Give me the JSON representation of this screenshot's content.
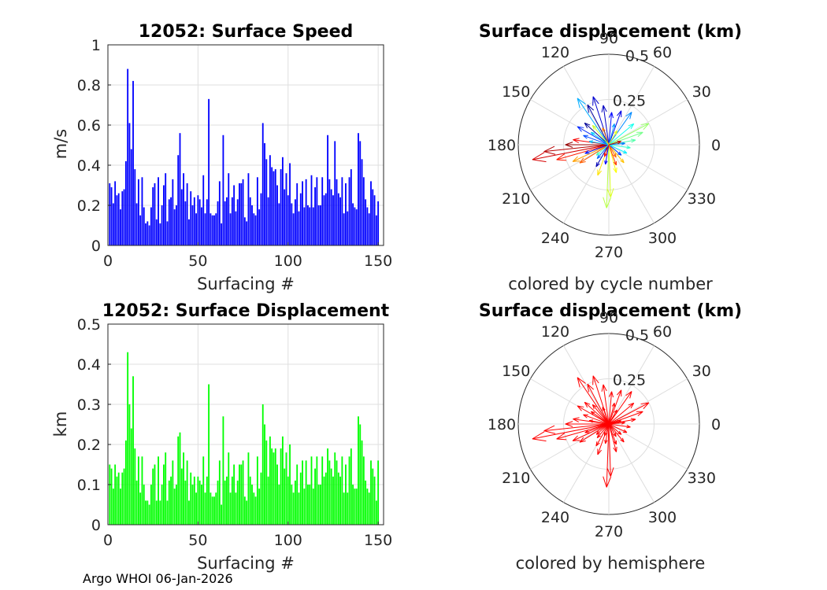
{
  "footer": "Argo WHOI 06-Jan-2026",
  "chart_data": [
    {
      "id": "speed",
      "type": "bar",
      "title": "12052: Surface Speed",
      "xlabel": "Surfacing #",
      "ylabel": "m/s",
      "xlim": [
        0,
        153
      ],
      "ylim": [
        0,
        1
      ],
      "xticks": [
        0,
        50,
        100,
        150
      ],
      "yticks": [
        0,
        0.2,
        0.4,
        0.6,
        0.8,
        1
      ],
      "ytick_labels": [
        "0",
        "0.2",
        "0.4",
        "0.6",
        "0.8",
        "1"
      ],
      "color": "#0000ff",
      "values": [
        0.31,
        0.29,
        0.21,
        0.32,
        0.25,
        0.26,
        0.18,
        0.27,
        0.28,
        0.42,
        0.88,
        0.61,
        0.48,
        0.82,
        0.38,
        0.21,
        0.33,
        0.15,
        0.34,
        0.19,
        0.11,
        0.12,
        0.1,
        0.19,
        0.29,
        0.31,
        0.13,
        0.34,
        0.11,
        0.2,
        0.3,
        0.36,
        0.12,
        0.23,
        0.24,
        0.33,
        0.18,
        0.2,
        0.45,
        0.56,
        0.28,
        0.36,
        0.22,
        0.31,
        0.13,
        0.27,
        0.2,
        0.24,
        0.16,
        0.25,
        0.23,
        0.19,
        0.35,
        0.16,
        0.23,
        0.73,
        0.16,
        0.15,
        0.15,
        0.16,
        0.22,
        0.32,
        0.11,
        0.55,
        0.22,
        0.24,
        0.36,
        0.16,
        0.24,
        0.3,
        0.17,
        0.23,
        0.31,
        0.31,
        0.33,
        0.14,
        0.12,
        0.36,
        0.24,
        0.2,
        0.16,
        0.15,
        0.34,
        0.18,
        0.26,
        0.61,
        0.51,
        0.43,
        0.24,
        0.45,
        0.39,
        0.37,
        0.38,
        0.3,
        0.21,
        0.38,
        0.44,
        0.28,
        0.36,
        0.25,
        0.41,
        0.21,
        0.16,
        0.23,
        0.31,
        0.17,
        0.26,
        0.32,
        0.19,
        0.33,
        0.2,
        0.19,
        0.35,
        0.19,
        0.29,
        0.34,
        0.2,
        0.2,
        0.34,
        0.25,
        0.26,
        0.55,
        0.33,
        0.28,
        0.25,
        0.52,
        0.33,
        0.26,
        0.24,
        0.34,
        0.16,
        0.31,
        0.17,
        0.34,
        0.38,
        0.21,
        0.19,
        0.18,
        0.56,
        0.52,
        0.43,
        0.34,
        0.23,
        0.19,
        0.16,
        0.32,
        0.28,
        0.25,
        0.15,
        0.22
      ],
      "ylabel_full": "m/s"
    },
    {
      "id": "displacement",
      "type": "bar",
      "title": "12052: Surface Displacement",
      "xlabel": "Surfacing #",
      "ylabel": "km",
      "xlim": [
        0,
        153
      ],
      "ylim": [
        0,
        0.5
      ],
      "xticks": [
        0,
        50,
        100,
        150
      ],
      "yticks": [
        0,
        0.1,
        0.2,
        0.3,
        0.4,
        0.5
      ],
      "ytick_labels": [
        "0",
        "0.1",
        "0.2",
        "0.3",
        "0.4",
        "0.5"
      ],
      "color": "#00ff00",
      "values": [
        0.15,
        0.14,
        0.09,
        0.15,
        0.12,
        0.13,
        0.09,
        0.13,
        0.14,
        0.21,
        0.43,
        0.3,
        0.24,
        0.37,
        0.19,
        0.11,
        0.17,
        0.08,
        0.17,
        0.1,
        0.06,
        0.06,
        0.05,
        0.1,
        0.14,
        0.15,
        0.06,
        0.17,
        0.06,
        0.1,
        0.15,
        0.18,
        0.06,
        0.11,
        0.12,
        0.16,
        0.09,
        0.1,
        0.22,
        0.23,
        0.14,
        0.18,
        0.11,
        0.16,
        0.06,
        0.13,
        0.1,
        0.12,
        0.08,
        0.12,
        0.11,
        0.1,
        0.17,
        0.08,
        0.12,
        0.35,
        0.08,
        0.07,
        0.07,
        0.08,
        0.11,
        0.16,
        0.05,
        0.27,
        0.11,
        0.12,
        0.18,
        0.08,
        0.12,
        0.15,
        0.08,
        0.11,
        0.15,
        0.15,
        0.16,
        0.07,
        0.06,
        0.18,
        0.12,
        0.1,
        0.08,
        0.07,
        0.17,
        0.09,
        0.13,
        0.3,
        0.25,
        0.21,
        0.12,
        0.22,
        0.19,
        0.18,
        0.19,
        0.15,
        0.1,
        0.19,
        0.22,
        0.14,
        0.18,
        0.12,
        0.2,
        0.1,
        0.08,
        0.11,
        0.15,
        0.08,
        0.13,
        0.16,
        0.09,
        0.16,
        0.1,
        0.1,
        0.17,
        0.09,
        0.14,
        0.17,
        0.1,
        0.1,
        0.17,
        0.12,
        0.13,
        0.19,
        0.16,
        0.14,
        0.12,
        0.18,
        0.16,
        0.13,
        0.12,
        0.17,
        0.08,
        0.15,
        0.08,
        0.17,
        0.19,
        0.1,
        0.09,
        0.09,
        0.27,
        0.25,
        0.21,
        0.17,
        0.11,
        0.09,
        0.08,
        0.16,
        0.14,
        0.12,
        0.06,
        0.16
      ]
    },
    {
      "id": "polar-cycle",
      "type": "polar",
      "title": "Surface displacement (km)",
      "caption": "colored by cycle number",
      "rmax": 0.5,
      "r_ticks": [
        0.25,
        0.5
      ],
      "r_tick_labels": [
        "0.25",
        "0.5"
      ],
      "theta_ticks": [
        0,
        30,
        60,
        90,
        120,
        150,
        180,
        210,
        240,
        270,
        300,
        330
      ],
      "theta_tick_labels": [
        "0",
        "30",
        "60",
        "90",
        "120",
        "150",
        "180",
        "210",
        "240",
        "270",
        "300",
        "330"
      ],
      "colormap": "jet",
      "arrows": [
        {
          "angle_deg": 191,
          "r_km": 0.43,
          "cycle": 140
        },
        {
          "angle_deg": 186,
          "r_km": 0.36,
          "cycle": 145
        },
        {
          "angle_deg": 196,
          "r_km": 0.3,
          "cycle": 130
        },
        {
          "angle_deg": 180,
          "r_km": 0.24,
          "cycle": 150
        },
        {
          "angle_deg": 172,
          "r_km": 0.2,
          "cycle": 135
        },
        {
          "angle_deg": 205,
          "r_km": 0.22,
          "cycle": 110
        },
        {
          "angle_deg": 212,
          "r_km": 0.19,
          "cycle": 120
        },
        {
          "angle_deg": 268,
          "r_km": 0.35,
          "cycle": 85
        },
        {
          "angle_deg": 272,
          "r_km": 0.29,
          "cycle": 90
        },
        {
          "angle_deg": 250,
          "r_km": 0.18,
          "cycle": 100
        },
        {
          "angle_deg": 285,
          "r_km": 0.16,
          "cycle": 95
        },
        {
          "angle_deg": 290,
          "r_km": 0.12,
          "cycle": 125
        },
        {
          "angle_deg": 310,
          "r_km": 0.13,
          "cycle": 105
        },
        {
          "angle_deg": 28,
          "r_km": 0.25,
          "cycle": 80
        },
        {
          "angle_deg": 20,
          "r_km": 0.2,
          "cycle": 75
        },
        {
          "angle_deg": 40,
          "r_km": 0.18,
          "cycle": 60
        },
        {
          "angle_deg": 10,
          "r_km": 0.15,
          "cycle": 70
        },
        {
          "angle_deg": 352,
          "r_km": 0.12,
          "cycle": 65
        },
        {
          "angle_deg": 55,
          "r_km": 0.22,
          "cycle": 40
        },
        {
          "angle_deg": 70,
          "r_km": 0.2,
          "cycle": 15
        },
        {
          "angle_deg": 85,
          "r_km": 0.18,
          "cycle": 20
        },
        {
          "angle_deg": 98,
          "r_km": 0.22,
          "cycle": 10
        },
        {
          "angle_deg": 108,
          "r_km": 0.28,
          "cycle": 12
        },
        {
          "angle_deg": 118,
          "r_km": 0.25,
          "cycle": 5
        },
        {
          "angle_deg": 124,
          "r_km": 0.31,
          "cycle": 45
        },
        {
          "angle_deg": 138,
          "r_km": 0.18,
          "cycle": 3
        },
        {
          "angle_deg": 150,
          "r_km": 0.2,
          "cycle": 25
        },
        {
          "angle_deg": 160,
          "r_km": 0.15,
          "cycle": 30
        },
        {
          "angle_deg": 145,
          "r_km": 0.12,
          "cycle": 50
        },
        {
          "angle_deg": 230,
          "r_km": 0.1,
          "cycle": 35
        },
        {
          "angle_deg": 240,
          "r_km": 0.14,
          "cycle": 8
        },
        {
          "angle_deg": 260,
          "r_km": 0.11,
          "cycle": 18
        },
        {
          "angle_deg": 320,
          "r_km": 0.09,
          "cycle": 28
        },
        {
          "angle_deg": 335,
          "r_km": 0.11,
          "cycle": 55
        },
        {
          "angle_deg": 5,
          "r_km": 0.09,
          "cycle": 38
        },
        {
          "angle_deg": 75,
          "r_km": 0.12,
          "cycle": 42
        },
        {
          "angle_deg": 200,
          "r_km": 0.14,
          "cycle": 22
        },
        {
          "angle_deg": 170,
          "r_km": 0.11,
          "cycle": 48
        },
        {
          "angle_deg": 130,
          "r_km": 0.14,
          "cycle": 88
        },
        {
          "angle_deg": 110,
          "r_km": 0.1,
          "cycle": 115
        },
        {
          "angle_deg": 60,
          "r_km": 0.09,
          "cycle": 92
        },
        {
          "angle_deg": 300,
          "r_km": 0.08,
          "cycle": 118
        },
        {
          "angle_deg": 220,
          "r_km": 0.09,
          "cycle": 68
        },
        {
          "angle_deg": 15,
          "r_km": 0.07,
          "cycle": 142
        },
        {
          "angle_deg": 250,
          "r_km": 0.07,
          "cycle": 132
        }
      ]
    },
    {
      "id": "polar-hemisphere",
      "type": "polar",
      "title": "Surface displacement (km)",
      "caption": "colored by hemisphere",
      "rmax": 0.5,
      "r_ticks": [
        0.25,
        0.5
      ],
      "r_tick_labels": [
        "0.25",
        "0.5"
      ],
      "theta_ticks": [
        0,
        30,
        60,
        90,
        120,
        150,
        180,
        210,
        240,
        270,
        300,
        330
      ],
      "theta_tick_labels": [
        "0",
        "30",
        "60",
        "90",
        "120",
        "150",
        "180",
        "210",
        "240",
        "270",
        "300",
        "330"
      ],
      "color": "#ff0000",
      "arrows": [
        {
          "angle_deg": 191,
          "r_km": 0.43
        },
        {
          "angle_deg": 186,
          "r_km": 0.36
        },
        {
          "angle_deg": 196,
          "r_km": 0.3
        },
        {
          "angle_deg": 180,
          "r_km": 0.24
        },
        {
          "angle_deg": 172,
          "r_km": 0.2
        },
        {
          "angle_deg": 205,
          "r_km": 0.22
        },
        {
          "angle_deg": 212,
          "r_km": 0.19
        },
        {
          "angle_deg": 268,
          "r_km": 0.35
        },
        {
          "angle_deg": 272,
          "r_km": 0.29
        },
        {
          "angle_deg": 250,
          "r_km": 0.18
        },
        {
          "angle_deg": 285,
          "r_km": 0.16
        },
        {
          "angle_deg": 290,
          "r_km": 0.12
        },
        {
          "angle_deg": 310,
          "r_km": 0.13
        },
        {
          "angle_deg": 28,
          "r_km": 0.25
        },
        {
          "angle_deg": 20,
          "r_km": 0.2
        },
        {
          "angle_deg": 40,
          "r_km": 0.18
        },
        {
          "angle_deg": 10,
          "r_km": 0.15
        },
        {
          "angle_deg": 352,
          "r_km": 0.12
        },
        {
          "angle_deg": 55,
          "r_km": 0.22
        },
        {
          "angle_deg": 70,
          "r_km": 0.2
        },
        {
          "angle_deg": 85,
          "r_km": 0.18
        },
        {
          "angle_deg": 98,
          "r_km": 0.22
        },
        {
          "angle_deg": 108,
          "r_km": 0.28
        },
        {
          "angle_deg": 118,
          "r_km": 0.25
        },
        {
          "angle_deg": 124,
          "r_km": 0.31
        },
        {
          "angle_deg": 138,
          "r_km": 0.18
        },
        {
          "angle_deg": 150,
          "r_km": 0.2
        },
        {
          "angle_deg": 160,
          "r_km": 0.15
        },
        {
          "angle_deg": 145,
          "r_km": 0.12
        },
        {
          "angle_deg": 230,
          "r_km": 0.1
        },
        {
          "angle_deg": 240,
          "r_km": 0.14
        },
        {
          "angle_deg": 260,
          "r_km": 0.11
        },
        {
          "angle_deg": 320,
          "r_km": 0.09
        },
        {
          "angle_deg": 335,
          "r_km": 0.11
        },
        {
          "angle_deg": 5,
          "r_km": 0.09
        },
        {
          "angle_deg": 75,
          "r_km": 0.12
        },
        {
          "angle_deg": 200,
          "r_km": 0.14
        },
        {
          "angle_deg": 170,
          "r_km": 0.11
        },
        {
          "angle_deg": 130,
          "r_km": 0.14
        },
        {
          "angle_deg": 110,
          "r_km": 0.1
        },
        {
          "angle_deg": 60,
          "r_km": 0.09
        },
        {
          "angle_deg": 300,
          "r_km": 0.08
        },
        {
          "angle_deg": 220,
          "r_km": 0.09
        },
        {
          "angle_deg": 15,
          "r_km": 0.07
        },
        {
          "angle_deg": 250,
          "r_km": 0.07
        }
      ]
    }
  ]
}
